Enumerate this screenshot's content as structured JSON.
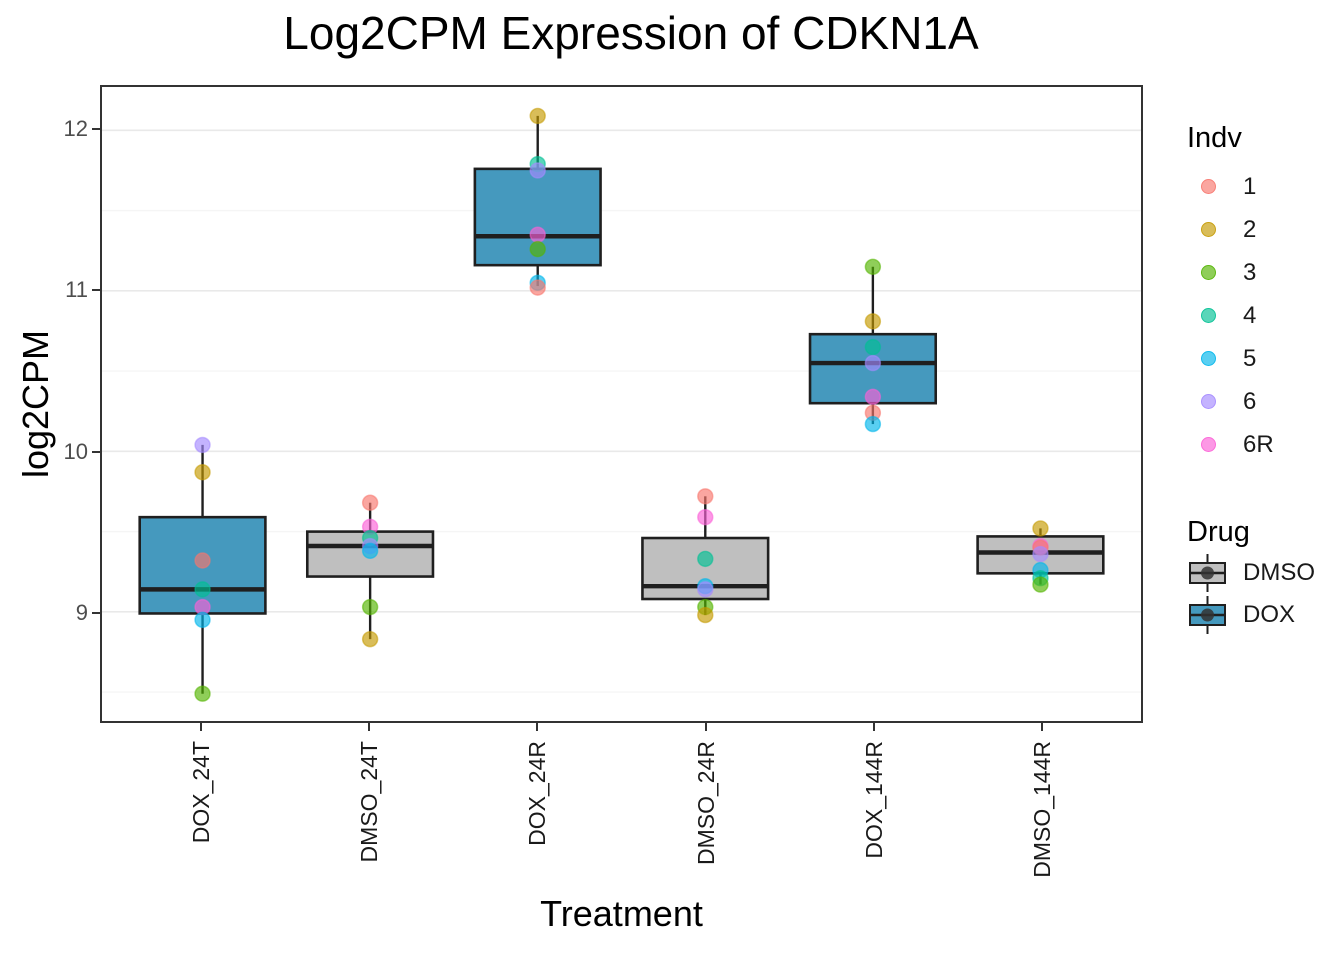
{
  "chart_data": {
    "type": "boxplot",
    "title": "Log2CPM Expression of CDKN1A",
    "xlabel": "Treatment",
    "ylabel": "log2CPM",
    "ylim": [
      8.32,
      12.27
    ],
    "y_ticks": [
      9,
      10,
      11,
      12
    ],
    "y_minor": [
      8.5,
      9.5,
      10.5,
      11.5
    ],
    "grid": true,
    "legend_position": "right",
    "categories": [
      "DOX_24T",
      "DMSO_24T",
      "DOX_24R",
      "DMSO_24R",
      "DOX_144R",
      "DMSO_144R"
    ],
    "groups": [
      {
        "treatment": "DOX_24T",
        "drug": "DOX",
        "stats": {
          "whisker_low": 8.49,
          "q1": 8.99,
          "median": 9.14,
          "q3": 9.59,
          "whisker_high": 10.04
        },
        "points": [
          {
            "indv": "6",
            "value": 10.04
          },
          {
            "indv": "2",
            "value": 9.87
          },
          {
            "indv": "1",
            "value": 9.32
          },
          {
            "indv": "4",
            "value": 9.14
          },
          {
            "indv": "6R",
            "value": 9.03
          },
          {
            "indv": "5",
            "value": 8.95
          },
          {
            "indv": "3",
            "value": 8.49
          }
        ]
      },
      {
        "treatment": "DMSO_24T",
        "drug": "DMSO",
        "stats": {
          "whisker_low": 8.83,
          "q1": 9.22,
          "median": 9.41,
          "q3": 9.5,
          "whisker_high": 9.68
        },
        "points": [
          {
            "indv": "1",
            "value": 9.68
          },
          {
            "indv": "6R",
            "value": 9.53
          },
          {
            "indv": "4",
            "value": 9.46
          },
          {
            "indv": "6",
            "value": 9.41
          },
          {
            "indv": "5",
            "value": 9.38
          },
          {
            "indv": "3",
            "value": 9.03
          },
          {
            "indv": "2",
            "value": 8.83
          }
        ]
      },
      {
        "treatment": "DOX_24R",
        "drug": "DOX",
        "stats": {
          "whisker_low": 11.03,
          "q1": 11.16,
          "median": 11.34,
          "q3": 11.76,
          "whisker_high": 12.09
        },
        "points": [
          {
            "indv": "2",
            "value": 12.09
          },
          {
            "indv": "4",
            "value": 11.79
          },
          {
            "indv": "6",
            "value": 11.75
          },
          {
            "indv": "6R",
            "value": 11.35
          },
          {
            "indv": "3",
            "value": 11.26
          },
          {
            "indv": "5",
            "value": 11.05
          },
          {
            "indv": "1",
            "value": 11.02
          }
        ]
      },
      {
        "treatment": "DMSO_24R",
        "drug": "DMSO",
        "stats": {
          "whisker_low": 8.98,
          "q1": 9.08,
          "median": 9.16,
          "q3": 9.46,
          "whisker_high": 9.72
        },
        "points": [
          {
            "indv": "1",
            "value": 9.72
          },
          {
            "indv": "6R",
            "value": 9.59
          },
          {
            "indv": "4",
            "value": 9.33
          },
          {
            "indv": "5",
            "value": 9.16
          },
          {
            "indv": "6",
            "value": 9.14
          },
          {
            "indv": "3",
            "value": 9.03
          },
          {
            "indv": "2",
            "value": 8.98
          }
        ]
      },
      {
        "treatment": "DOX_144R",
        "drug": "DOX",
        "stats": {
          "whisker_low": 10.17,
          "q1": 10.3,
          "median": 10.55,
          "q3": 10.73,
          "whisker_high": 11.15
        },
        "points": [
          {
            "indv": "3",
            "value": 11.15
          },
          {
            "indv": "2",
            "value": 10.81
          },
          {
            "indv": "4",
            "value": 10.65
          },
          {
            "indv": "6",
            "value": 10.55
          },
          {
            "indv": "6R",
            "value": 10.34
          },
          {
            "indv": "1",
            "value": 10.24
          },
          {
            "indv": "5",
            "value": 10.17
          }
        ]
      },
      {
        "treatment": "DMSO_144R",
        "drug": "DMSO",
        "stats": {
          "whisker_low": 9.17,
          "q1": 9.24,
          "median": 9.37,
          "q3": 9.47,
          "whisker_high": 9.52
        },
        "points": [
          {
            "indv": "2",
            "value": 9.52
          },
          {
            "indv": "6R",
            "value": 9.41
          },
          {
            "indv": "1",
            "value": 9.4
          },
          {
            "indv": "6",
            "value": 9.36
          },
          {
            "indv": "5",
            "value": 9.26
          },
          {
            "indv": "4",
            "value": 9.21
          },
          {
            "indv": "3",
            "value": 9.17
          }
        ]
      }
    ],
    "legend": {
      "indv_title": "Indv",
      "indv_items": [
        "1",
        "2",
        "3",
        "4",
        "5",
        "6",
        "6R"
      ],
      "drug_title": "Drug",
      "drug_items": [
        "DMSO",
        "DOX"
      ]
    }
  },
  "colors": {
    "indv": {
      "1": "#F8766D",
      "2": "#C49A00",
      "3": "#53B400",
      "4": "#00C094",
      "5": "#00B6EB",
      "6": "#A58AFF",
      "6R": "#FB61D7"
    },
    "point_alpha": 0.65,
    "drug": {
      "DOX": "#4599BE",
      "DMSO": "#BFBFBF"
    },
    "box_stroke": "#1F1F1F",
    "grid_major": "#E9E9E9",
    "grid_minor": "#F5F5F5",
    "axis_text_y": "#4D4D4D",
    "axis_text_x": "#1A1A1A",
    "panel_border": "#333333",
    "legend_key_dot": "#333333"
  }
}
